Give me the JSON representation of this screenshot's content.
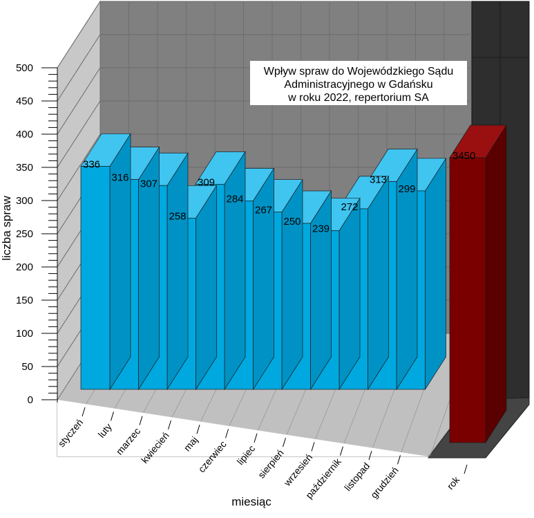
{
  "chart_data": {
    "type": "bar",
    "title_lines": [
      "Wpływ spraw do Wojewódzkiego Sądu",
      "Administracyjnego w Gdańsku",
      "w roku 2022, repertorium SA"
    ],
    "xlabel": "miesiąc",
    "ylabel": "liczba spraw",
    "ylim": [
      0,
      500
    ],
    "yticks": [
      0,
      50,
      100,
      150,
      200,
      250,
      300,
      350,
      400,
      450,
      500
    ],
    "categories": [
      "styczeń",
      "luty",
      "marzec",
      "kwiecień",
      "maj",
      "czerwiec",
      "lipiec",
      "sierpień",
      "wrzesień",
      "październik",
      "listopad",
      "grudzień"
    ],
    "values": [
      336,
      316,
      307,
      258,
      309,
      284,
      267,
      250,
      239,
      272,
      313,
      299
    ],
    "total": {
      "category": "rok",
      "value": 3450,
      "label": "3450"
    },
    "colors": {
      "bar_front": "#00a8e0",
      "bar_side": "#0092c4",
      "bar_top": "#40c4f0",
      "total_front": "#7a0000",
      "total_side": "#5a0000",
      "total_top": "#9a1010",
      "back_wall": "#808080",
      "side_wall": "#c8c8c8",
      "floor": "#c0c0c0",
      "dark_panel": "#2e2e2e",
      "dark_panel_floor": "#444444"
    },
    "grid": true,
    "legend": "none"
  }
}
